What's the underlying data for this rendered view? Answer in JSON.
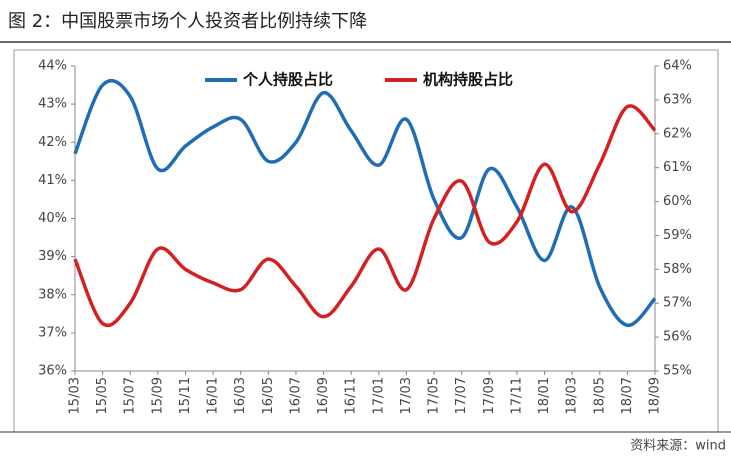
{
  "chart_data": {
    "type": "line",
    "title": "图 2：中国股票市场个人投资者比例持续下降",
    "source": "资料来源：wind",
    "legend": "top",
    "categories": [
      "15/03",
      "15/05",
      "15/07",
      "15/09",
      "15/11",
      "16/01",
      "16/03",
      "16/05",
      "16/07",
      "16/09",
      "16/11",
      "17/01",
      "17/03",
      "17/05",
      "17/07",
      "17/09",
      "17/11",
      "18/01",
      "18/03",
      "18/05",
      "18/07",
      "18/09"
    ],
    "series": [
      {
        "name": "个人持股占比",
        "color": "#1f6db4",
        "axis": "y",
        "values": [
          41.7,
          43.5,
          43.2,
          41.3,
          41.9,
          42.4,
          42.6,
          41.5,
          42.0,
          43.3,
          42.3,
          41.4,
          42.6,
          40.5,
          39.5,
          41.3,
          40.3,
          38.9,
          40.3,
          38.2,
          37.2,
          37.9
        ]
      },
      {
        "name": "机构持股占比",
        "color": "#d42020",
        "axis": "y2",
        "values": [
          58.3,
          56.4,
          57.0,
          58.6,
          58.0,
          57.6,
          57.4,
          58.3,
          57.5,
          56.6,
          57.5,
          58.6,
          57.4,
          59.5,
          60.6,
          58.8,
          59.4,
          61.1,
          59.7,
          61.1,
          62.8,
          62.1
        ]
      }
    ],
    "ylim": [
      36,
      44
    ],
    "yticks": [
      {
        "value": 36,
        "label": "36%"
      },
      {
        "value": 37,
        "label": "37%"
      },
      {
        "value": 38,
        "label": "38%"
      },
      {
        "value": 39,
        "label": "39%"
      },
      {
        "value": 40,
        "label": "40%"
      },
      {
        "value": 41,
        "label": "41%"
      },
      {
        "value": 42,
        "label": "42%"
      },
      {
        "value": 43,
        "label": "43%"
      },
      {
        "value": 44,
        "label": "44%"
      }
    ],
    "y2lim": [
      55,
      64
    ],
    "y2ticks": [
      {
        "value": 55,
        "label": "55%"
      },
      {
        "value": 56,
        "label": "56%"
      },
      {
        "value": 57,
        "label": "57%"
      },
      {
        "value": 58,
        "label": "58%"
      },
      {
        "value": 59,
        "label": "59%"
      },
      {
        "value": 60,
        "label": "60%"
      },
      {
        "value": 61,
        "label": "61%"
      },
      {
        "value": 62,
        "label": "62%"
      },
      {
        "value": 63,
        "label": "63%"
      },
      {
        "value": 64,
        "label": "64%"
      }
    ]
  }
}
